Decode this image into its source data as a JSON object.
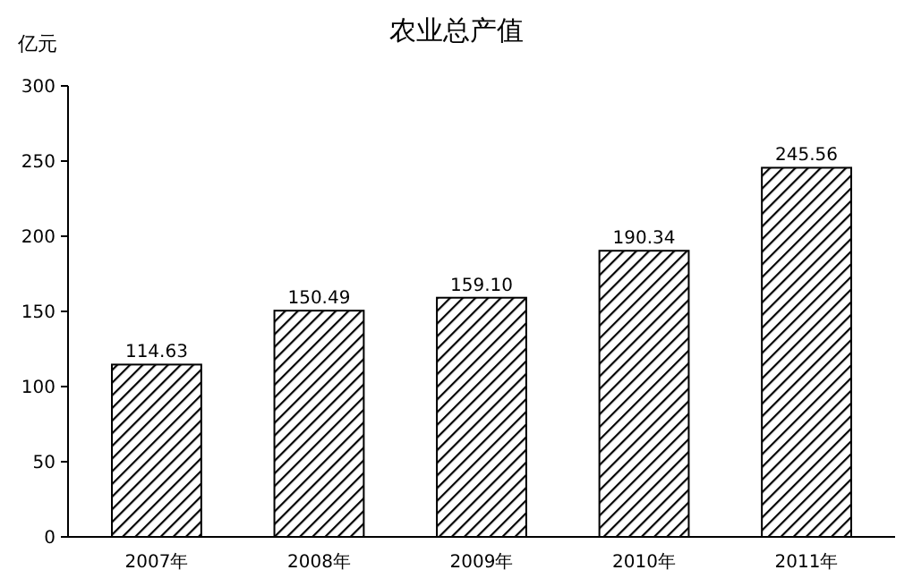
{
  "chart_data": {
    "type": "bar",
    "title": "农业总产值",
    "ylabel": "亿元",
    "categories": [
      "2007年",
      "2008年",
      "2009年",
      "2010年",
      "2011年"
    ],
    "values": [
      114.63,
      150.49,
      159.1,
      190.34,
      245.56
    ],
    "value_labels": [
      "114.63",
      "150.49",
      "159.10",
      "190.34",
      "245.56"
    ],
    "color": "#000000",
    "ylim": [
      0,
      300
    ],
    "yticks": [
      0,
      50,
      100,
      150,
      200,
      250,
      300
    ]
  }
}
